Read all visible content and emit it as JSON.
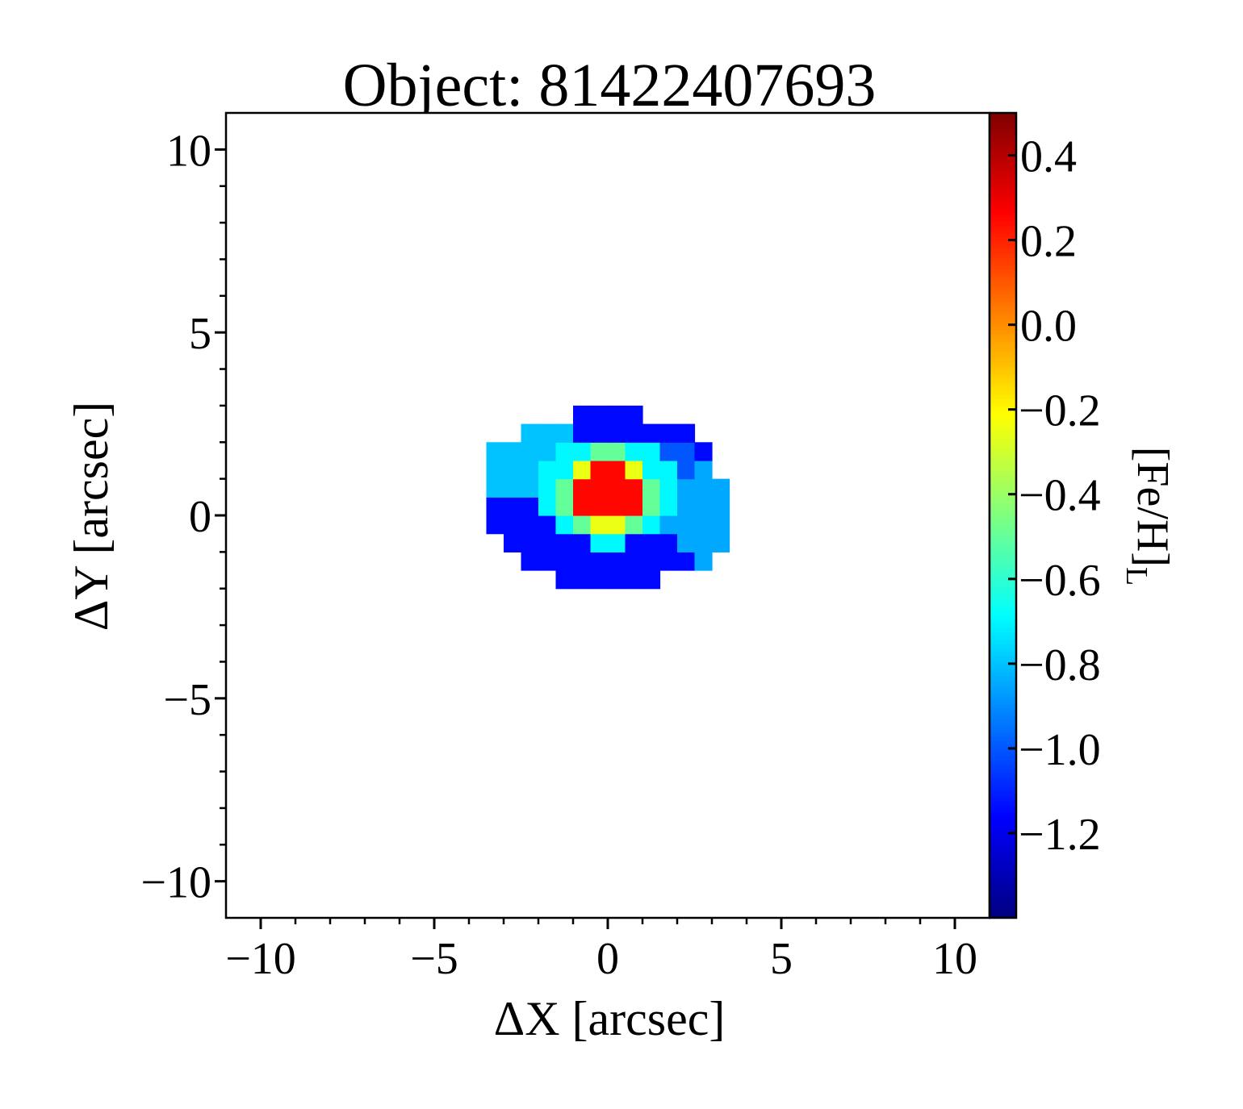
{
  "chart_data": {
    "type": "heatmap",
    "title": "Object: 81422407693",
    "xlabel": "ΔX [arcsec]",
    "ylabel": "ΔY [arcsec]",
    "colorbar_label": "[Fe/H]",
    "colorbar_label_subscript": "L",
    "xlim": [
      -11,
      11
    ],
    "ylim": [
      -11,
      11
    ],
    "xticks": [
      -10,
      -5,
      0,
      5,
      10
    ],
    "xtick_labels": [
      "−10",
      "−5",
      "0",
      "5",
      "10"
    ],
    "yticks": [
      -10,
      -5,
      0,
      5,
      10
    ],
    "ytick_labels": [
      "−10",
      "−5",
      "0",
      "5",
      "10"
    ],
    "colormap": "jet",
    "color_range": [
      -1.4,
      0.5
    ],
    "colorbar_ticks": [
      0.4,
      0.2,
      0.0,
      -0.2,
      -0.4,
      -0.6,
      -0.8,
      -1.0,
      -1.2
    ],
    "colorbar_tick_labels": [
      "0.4",
      "0.2",
      "0.0",
      "−0.2",
      "−0.4",
      "−0.6",
      "−0.8",
      "−1.0",
      "−1.2"
    ],
    "pixel_size_arcsec": 0.5,
    "map_regions": [
      {
        "shape": "ellipse",
        "center": [
          0.0,
          0.4
        ],
        "radii": [
          3.4,
          2.5
        ],
        "value": -1.15
      },
      {
        "shape": "ellipse",
        "center": [
          0.6,
          0.9
        ],
        "radii": [
          2.4,
          1.3
        ],
        "value": -1.0
      },
      {
        "shape": "ellipse",
        "center": [
          -1.8,
          1.3
        ],
        "radii": [
          1.8,
          1.0
        ],
        "value": -0.8
      },
      {
        "shape": "ellipse",
        "center": [
          2.6,
          0.0
        ],
        "radii": [
          0.9,
          1.3
        ],
        "value": -0.85
      },
      {
        "shape": "ellipse",
        "center": [
          0.0,
          0.7
        ],
        "radii": [
          2.0,
          1.55
        ],
        "value": -0.7
      },
      {
        "shape": "ellipse",
        "center": [
          0.0,
          0.6
        ],
        "radii": [
          1.4,
          1.2
        ],
        "value": -0.5
      },
      {
        "shape": "ellipse",
        "center": [
          0.0,
          0.6
        ],
        "radii": [
          1.1,
          1.0
        ],
        "value": -0.25
      },
      {
        "shape": "ellipse",
        "center": [
          0.0,
          0.6
        ],
        "radii": [
          0.95,
          0.85
        ],
        "value": 0.25
      }
    ]
  }
}
